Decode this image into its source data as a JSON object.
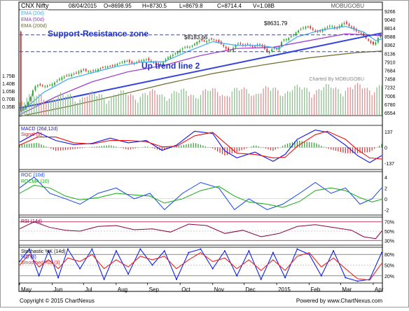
{
  "header": {
    "symbol": "CNX Nifty",
    "date": "08/04/2015",
    "open": "O=8698.95",
    "high": "H=8730.5",
    "low": "L=8679.8",
    "close": "C=8714.4",
    "volume": "V=1.08B",
    "brand": "MOBUGOBU",
    "charted_by": "Charted By MOBUGOBU"
  },
  "footer": {
    "copyright": "Copyright © 2015 ChartNexus",
    "powered": "Powered by www.ChartNexus.com"
  },
  "annotations": {
    "zone_label": "Support-Resistance zone",
    "trend_label": "Up trend line 2",
    "upper_level": "$8631.79",
    "lower_level": "$8183.66"
  },
  "colors": {
    "price_up": "#22a022",
    "price_down": "#d42020",
    "ema20": "#3fa9f5",
    "ema50": "#9933cc",
    "ema200": "#6b6b2a",
    "trend": "#3344dd",
    "zone": "#3344dd",
    "volume": "#88bb88",
    "volume_down": "#dd8888",
    "macd": "#1111ee",
    "signal": "#ee1111",
    "roc": "#1144ee",
    "rocma": "#11aa11",
    "rsi": "#880044",
    "stoch_k": "#1122ee",
    "stoch_d": "#ee2222",
    "frame": "#000000"
  },
  "chart_data": [
    {
      "type": "candlestick",
      "title": "CNX Nifty",
      "legend": [
        "EMA (20d)",
        "EMA (50d)",
        "EMA (200d)"
      ],
      "x_ticks": [
        "May",
        "Jun",
        "Jul",
        "Aug",
        "Sep",
        "Oct",
        "Nov",
        "Dec",
        "2015",
        "Feb",
        "Mar",
        "Apr"
      ],
      "y_ticks": [
        9266,
        9040,
        8814,
        8588,
        8362,
        8136,
        7910,
        7684,
        7458,
        7232,
        7006,
        6780,
        6554
      ],
      "ylim": [
        6480,
        9300
      ],
      "volume_ticks": [
        "1.75B",
        "1.40B",
        "1.05B",
        "0.70B",
        "0.35B"
      ],
      "close_path": [
        [
          0,
          6560
        ],
        [
          4,
          6700
        ],
        [
          8,
          6880
        ],
        [
          12,
          7240
        ],
        [
          16,
          7300
        ],
        [
          22,
          7250
        ],
        [
          28,
          7330
        ],
        [
          34,
          7480
        ],
        [
          40,
          7550
        ],
        [
          46,
          7600
        ],
        [
          52,
          7700
        ],
        [
          58,
          7650
        ],
        [
          64,
          7700
        ],
        [
          70,
          7780
        ],
        [
          76,
          7800
        ],
        [
          82,
          7870
        ],
        [
          88,
          7950
        ],
        [
          94,
          7870
        ],
        [
          100,
          7940
        ],
        [
          106,
          7980
        ],
        [
          110,
          7900
        ],
        [
          114,
          7850
        ],
        [
          118,
          7860
        ],
        [
          122,
          8010
        ],
        [
          126,
          8080
        ],
        [
          130,
          8150
        ],
        [
          134,
          8250
        ],
        [
          138,
          8320
        ],
        [
          142,
          8310
        ],
        [
          146,
          8420
        ],
        [
          150,
          8500
        ],
        [
          154,
          8450
        ],
        [
          158,
          8520
        ],
        [
          162,
          8500
        ],
        [
          166,
          8420
        ],
        [
          170,
          8300
        ],
        [
          174,
          8180
        ],
        [
          178,
          8320
        ],
        [
          182,
          8420
        ],
        [
          186,
          8340
        ],
        [
          190,
          8380
        ],
        [
          194,
          8290
        ],
        [
          198,
          8400
        ],
        [
          202,
          8300
        ],
        [
          206,
          8150
        ],
        [
          210,
          8280
        ],
        [
          214,
          8250
        ],
        [
          218,
          8500
        ],
        [
          222,
          8520
        ],
        [
          226,
          8620
        ],
        [
          230,
          8720
        ],
        [
          234,
          8820
        ],
        [
          238,
          8850
        ],
        [
          242,
          8800
        ],
        [
          246,
          8700
        ],
        [
          250,
          8750
        ],
        [
          254,
          8820
        ],
        [
          258,
          8880
        ],
        [
          262,
          8780
        ],
        [
          266,
          8900
        ],
        [
          270,
          8960
        ],
        [
          274,
          8850
        ],
        [
          278,
          8750
        ],
        [
          282,
          8690
        ],
        [
          286,
          8580
        ],
        [
          290,
          8450
        ],
        [
          294,
          8360
        ],
        [
          296,
          8500
        ],
        [
          300,
          8700
        ]
      ],
      "ema20_path": [
        [
          0,
          6540
        ],
        [
          20,
          7100
        ],
        [
          40,
          7450
        ],
        [
          60,
          7620
        ],
        [
          80,
          7790
        ],
        [
          100,
          7900
        ],
        [
          120,
          7920
        ],
        [
          140,
          8200
        ],
        [
          160,
          8450
        ],
        [
          180,
          8350
        ],
        [
          200,
          8350
        ],
        [
          215,
          8270
        ],
        [
          230,
          8580
        ],
        [
          250,
          8760
        ],
        [
          270,
          8860
        ],
        [
          285,
          8710
        ],
        [
          295,
          8480
        ],
        [
          300,
          8520
        ]
      ],
      "ema50_path": [
        [
          0,
          6500
        ],
        [
          30,
          6980
        ],
        [
          60,
          7380
        ],
        [
          90,
          7650
        ],
        [
          120,
          7820
        ],
        [
          150,
          8080
        ],
        [
          180,
          8270
        ],
        [
          210,
          8300
        ],
        [
          240,
          8480
        ],
        [
          270,
          8660
        ],
        [
          300,
          8610
        ]
      ],
      "ema200_path": [
        [
          0,
          6460
        ],
        [
          40,
          6720
        ],
        [
          80,
          7010
        ],
        [
          120,
          7320
        ],
        [
          160,
          7600
        ],
        [
          200,
          7820
        ],
        [
          240,
          8020
        ],
        [
          280,
          8160
        ],
        [
          300,
          8200
        ]
      ],
      "trend_line": [
        [
          0,
          6680
        ],
        [
          300,
          8680
        ]
      ],
      "horizontal_levels": [
        8631.79,
        8183.66
      ]
    },
    {
      "type": "line",
      "title": "MACD (26d,12d)",
      "legend": [
        "MACD (26d,12d)",
        "Signal (9)"
      ],
      "y_ticks": [
        137,
        0,
        -137
      ],
      "ylim": [
        -190,
        190
      ],
      "series": [
        {
          "name": "MACD (26d,12d)",
          "x": [
            0,
            15,
            30,
            45,
            60,
            75,
            90,
            105,
            118,
            130,
            145,
            160,
            170,
            180,
            195,
            210,
            220,
            230,
            245,
            255,
            270,
            280,
            290,
            300
          ],
          "values": [
            45,
            130,
            60,
            25,
            35,
            80,
            40,
            60,
            -25,
            20,
            140,
            120,
            -30,
            -90,
            -40,
            -120,
            -60,
            70,
            150,
            130,
            20,
            -70,
            -130,
            -70
          ]
        },
        {
          "name": "Signal (9)",
          "x": [
            0,
            15,
            30,
            45,
            60,
            75,
            90,
            105,
            118,
            130,
            145,
            160,
            170,
            180,
            195,
            210,
            220,
            230,
            245,
            255,
            270,
            280,
            290,
            300
          ],
          "values": [
            20,
            90,
            90,
            40,
            30,
            60,
            60,
            50,
            5,
            10,
            100,
            130,
            40,
            -50,
            -60,
            -90,
            -85,
            10,
            110,
            140,
            70,
            -20,
            -90,
            -100
          ]
        }
      ]
    },
    {
      "type": "line",
      "title": "ROC (10d)",
      "legend": [
        "ROC (10d)",
        "ROCMA (10)"
      ],
      "y_ticks": [
        4,
        2,
        0,
        -2
      ],
      "ylim": [
        -3,
        5
      ],
      "series": [
        {
          "name": "ROC (10d)",
          "x": [
            0,
            12,
            25,
            38,
            50,
            65,
            80,
            95,
            108,
            120,
            135,
            150,
            165,
            178,
            190,
            205,
            218,
            232,
            245,
            258,
            270,
            282,
            292,
            300
          ],
          "values": [
            2,
            4,
            1,
            0,
            -1,
            1,
            2,
            0,
            1,
            -2,
            1,
            3,
            2,
            -2,
            0,
            -2,
            -1,
            1,
            3,
            1,
            2,
            -1,
            0,
            2
          ]
        },
        {
          "name": "ROCMA (10)",
          "x": [
            0,
            12,
            25,
            38,
            50,
            65,
            80,
            95,
            108,
            120,
            135,
            150,
            165,
            178,
            190,
            205,
            218,
            232,
            245,
            258,
            270,
            282,
            292,
            300
          ],
          "values": [
            1,
            2.5,
            2,
            0.5,
            -0.2,
            0.2,
            1,
            0.7,
            0.5,
            -0.8,
            0,
            1.5,
            2.3,
            0.5,
            -0.6,
            -1,
            -1.6,
            -0.5,
            1.5,
            2,
            1.5,
            0.2,
            -0.6,
            -0.1
          ]
        }
      ]
    },
    {
      "type": "line",
      "title": "RSI (14d)",
      "y_ticks": [
        70,
        50,
        30
      ],
      "ylim": [
        20,
        80
      ],
      "series": [
        {
          "name": "RSI (14d)",
          "x": [
            0,
            12,
            25,
            38,
            50,
            65,
            80,
            95,
            110,
            125,
            140,
            155,
            170,
            185,
            200,
            215,
            230,
            245,
            260,
            275,
            285,
            295,
            300
          ],
          "values": [
            55,
            70,
            58,
            52,
            50,
            60,
            62,
            53,
            55,
            48,
            65,
            62,
            45,
            52,
            38,
            45,
            60,
            64,
            58,
            52,
            38,
            34,
            50
          ]
        }
      ]
    },
    {
      "type": "line",
      "title": "Stochastic %K (14d)",
      "legend": [
        "Stochastic %K (14d)",
        "%D (3)",
        "Smoothed %D (3)"
      ],
      "y_ticks": [
        80,
        50,
        20
      ],
      "ylim": [
        0,
        100
      ],
      "series": [
        {
          "name": "%K",
          "x": [
            0,
            8,
            16,
            24,
            32,
            40,
            50,
            60,
            70,
            80,
            90,
            100,
            110,
            120,
            130,
            140,
            150,
            160,
            170,
            180,
            190,
            200,
            210,
            220,
            230,
            240,
            250,
            260,
            270,
            280,
            290,
            300
          ],
          "values": [
            60,
            95,
            20,
            90,
            15,
            95,
            40,
            95,
            10,
            90,
            25,
            95,
            50,
            90,
            10,
            85,
            95,
            40,
            90,
            20,
            90,
            10,
            85,
            15,
            95,
            80,
            20,
            90,
            15,
            5,
            10,
            85
          ]
        },
        {
          "name": "Smoothed %D (3)",
          "x": [
            0,
            8,
            16,
            24,
            32,
            40,
            50,
            60,
            70,
            80,
            90,
            100,
            110,
            120,
            130,
            140,
            150,
            160,
            170,
            180,
            190,
            200,
            210,
            220,
            230,
            240,
            250,
            260,
            270,
            280,
            290,
            300
          ],
          "values": [
            50,
            80,
            45,
            65,
            40,
            70,
            60,
            80,
            40,
            65,
            45,
            75,
            65,
            75,
            40,
            65,
            85,
            60,
            70,
            40,
            65,
            35,
            65,
            35,
            75,
            85,
            45,
            70,
            40,
            12,
            8,
            55
          ]
        }
      ]
    }
  ]
}
